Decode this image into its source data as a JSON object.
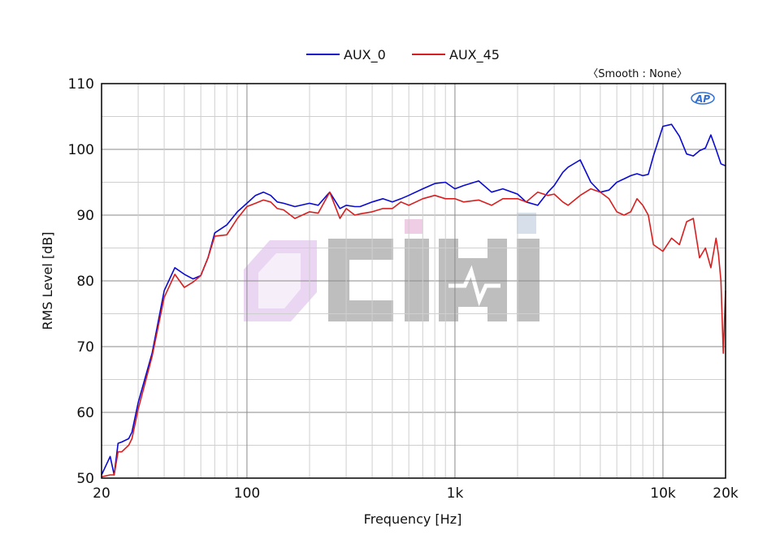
{
  "chart_data": {
    "type": "line",
    "xlabel": "Frequency [Hz]",
    "ylabel": "RMS Level [dB]",
    "xscale": "log",
    "xlim": [
      20,
      20000
    ],
    "ylim": [
      50,
      110
    ],
    "x_tick_labels": [
      "20",
      "100",
      "1k",
      "10k",
      "20k"
    ],
    "y_tick_labels": [
      "50",
      "60",
      "70",
      "80",
      "90",
      "100",
      "110"
    ],
    "legend_placement": "top-center",
    "annotation": "〈Smooth : None〉",
    "logo_text": "AP",
    "watermark_text": "Cihi",
    "grid": true,
    "series": [
      {
        "name": "AUX_0",
        "color": "#0a0ad2",
        "x": [
          20,
          22,
          23,
          24,
          25,
          27,
          28,
          30,
          35,
          40,
          45,
          50,
          55,
          60,
          65,
          70,
          80,
          90,
          100,
          110,
          120,
          130,
          140,
          150,
          170,
          200,
          220,
          250,
          280,
          300,
          330,
          350,
          400,
          450,
          500,
          550,
          600,
          700,
          800,
          900,
          1000,
          1100,
          1300,
          1500,
          1700,
          2000,
          2200,
          2500,
          2800,
          3000,
          3300,
          3500,
          4000,
          4500,
          5000,
          5500,
          6000,
          6500,
          7000,
          7500,
          8000,
          8500,
          9000,
          10000,
          11000,
          12000,
          13000,
          14000,
          15000,
          16000,
          17000,
          18000,
          19000,
          20000
        ],
        "y": [
          50.5,
          53.3,
          50.5,
          55.3,
          55.5,
          56.0,
          57.0,
          61.5,
          69.0,
          78.5,
          82.0,
          81.0,
          80.3,
          80.8,
          83.5,
          87.3,
          88.5,
          90.5,
          91.8,
          93.0,
          93.5,
          93.0,
          92.0,
          91.8,
          91.3,
          91.8,
          91.5,
          93.5,
          91.0,
          91.5,
          91.3,
          91.3,
          92.0,
          92.5,
          92.0,
          92.5,
          93.0,
          94.0,
          94.8,
          95.0,
          94.0,
          94.5,
          95.2,
          93.5,
          94.0,
          93.2,
          92.0,
          91.5,
          93.5,
          94.5,
          96.5,
          97.3,
          98.4,
          95.0,
          93.5,
          93.8,
          95.0,
          95.5,
          96.0,
          96.3,
          96.0,
          96.2,
          99.0,
          103.5,
          103.8,
          102.0,
          99.3,
          99.0,
          99.8,
          100.2,
          102.2,
          100.0,
          97.8,
          97.5
        ]
      },
      {
        "name": "AUX_45",
        "color": "#d81f1f",
        "x": [
          20,
          22,
          23,
          24,
          25,
          27,
          28,
          30,
          35,
          40,
          45,
          50,
          55,
          60,
          65,
          70,
          80,
          90,
          100,
          110,
          120,
          130,
          140,
          150,
          170,
          200,
          220,
          250,
          280,
          300,
          330,
          350,
          400,
          450,
          500,
          550,
          600,
          700,
          800,
          900,
          1000,
          1100,
          1300,
          1500,
          1700,
          2000,
          2200,
          2500,
          2800,
          3000,
          3300,
          3500,
          4000,
          4500,
          5000,
          5500,
          6000,
          6500,
          7000,
          7500,
          8000,
          8500,
          9000,
          10000,
          11000,
          12000,
          13000,
          14000,
          15000,
          16000,
          17000,
          18000,
          18500,
          19000,
          19500,
          20000
        ],
        "y": [
          50.2,
          50.5,
          50.5,
          54.0,
          54.0,
          55.0,
          56.0,
          60.5,
          68.5,
          77.5,
          81.0,
          79.0,
          79.8,
          80.8,
          83.5,
          86.8,
          87.0,
          89.5,
          91.3,
          91.8,
          92.3,
          92.0,
          91.0,
          90.8,
          89.5,
          90.5,
          90.3,
          93.5,
          89.5,
          91.0,
          90.0,
          90.2,
          90.5,
          91.0,
          91.0,
          92.0,
          91.5,
          92.5,
          93.0,
          92.5,
          92.5,
          92.0,
          92.3,
          91.5,
          92.5,
          92.5,
          92.0,
          93.5,
          93.0,
          93.2,
          92.0,
          91.5,
          93.0,
          94.0,
          93.5,
          92.5,
          90.5,
          90.0,
          90.5,
          92.5,
          91.5,
          90.0,
          85.5,
          84.5,
          86.5,
          85.5,
          89.0,
          89.5,
          83.5,
          85.0,
          82.0,
          86.5,
          84.0,
          80.0,
          69.0,
          78.5
        ]
      }
    ]
  }
}
